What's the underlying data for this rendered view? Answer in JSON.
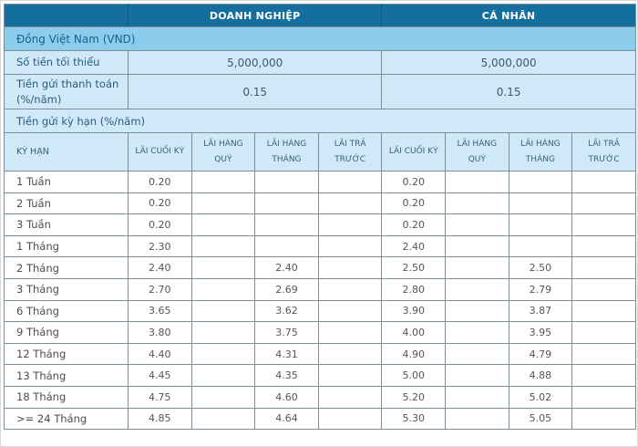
{
  "rates": {
    "groups": {
      "doanh_nghiep": "DOANH NGHIỆP",
      "ca_nhan": "CÁ NHÂN"
    },
    "currency_section": "Đồng Việt Nam (VND)",
    "min_amount": {
      "label": "Số tiền tối thiểu",
      "doanh_nghiep": "5,000,000",
      "ca_nhan": "5,000,000"
    },
    "demand_deposit": {
      "label": "Tiền gửi thanh toán (%/năm)",
      "doanh_nghiep": "0.15",
      "ca_nhan": "0.15"
    },
    "term_section": "Tiền gửi kỳ hạn (%/năm)",
    "sub_headers": [
      "KỲ HẠN",
      "LÃI CUỐI KỲ",
      "LÃI HÀNG QUÝ",
      "LÃI HÀNG THÁNG",
      "LÃI TRẢ TRƯỚC",
      "LÃI CUỐI KỲ",
      "LÃI HÀNG QUÝ",
      "LÃI HÀNG THÁNG",
      "LÃI TRẢ TRƯỚC"
    ],
    "rows": [
      {
        "term": "1 Tuần",
        "values": [
          "0.20",
          "",
          "",
          "",
          "0.20",
          "",
          "",
          ""
        ]
      },
      {
        "term": "2 Tuần",
        "values": [
          "0.20",
          "",
          "",
          "",
          "0.20",
          "",
          "",
          ""
        ]
      },
      {
        "term": "3 Tuần",
        "values": [
          "0.20",
          "",
          "",
          "",
          "0.20",
          "",
          "",
          ""
        ]
      },
      {
        "term": "1 Tháng",
        "values": [
          "2.30",
          "",
          "",
          "",
          "2.40",
          "",
          "",
          ""
        ]
      },
      {
        "term": "2 Tháng",
        "values": [
          "2.40",
          "",
          "2.40",
          "",
          "2.50",
          "",
          "2.50",
          ""
        ]
      },
      {
        "term": "3 Tháng",
        "values": [
          "2.70",
          "",
          "2.69",
          "",
          "2.80",
          "",
          "2.79",
          ""
        ]
      },
      {
        "term": "6 Tháng",
        "values": [
          "3.65",
          "",
          "3.62",
          "",
          "3.90",
          "",
          "3.87",
          ""
        ]
      },
      {
        "term": "9 Tháng",
        "values": [
          "3.80",
          "",
          "3.75",
          "",
          "4.00",
          "",
          "3.95",
          ""
        ]
      },
      {
        "term": "12 Tháng",
        "values": [
          "4.40",
          "",
          "4.31",
          "",
          "4.90",
          "",
          "4.79",
          ""
        ]
      },
      {
        "term": "13 Tháng",
        "values": [
          "4.45",
          "",
          "4.35",
          "",
          "5.00",
          "",
          "4.88",
          ""
        ]
      },
      {
        "term": "18 Tháng",
        "values": [
          "4.75",
          "",
          "4.60",
          "",
          "5.20",
          "",
          "5.02",
          ""
        ]
      },
      {
        "term": ">= 24 Tháng",
        "values": [
          "4.85",
          "",
          "4.64",
          "",
          "5.30",
          "",
          "5.05",
          ""
        ]
      }
    ],
    "colors": {
      "header_bg": "#156f9e",
      "header_text": "#ffffff",
      "currency_row_bg": "#8ccdee",
      "light_row_bg": "#cfe9f8",
      "label_text": "#2b5c7d",
      "value_text": "#3e5a6a",
      "data_text": "#555555",
      "border": "#7e8e99"
    }
  }
}
